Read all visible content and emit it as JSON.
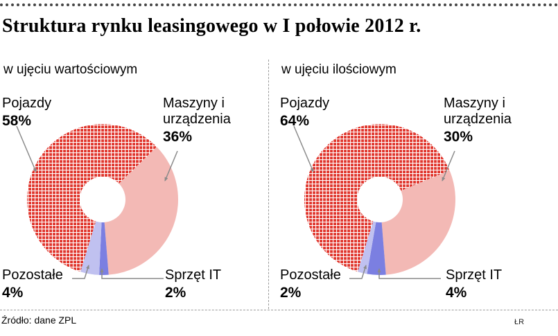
{
  "page": {
    "title": "Struktura rynku leasingowego w I połowie 2012 r.",
    "source": "Źródło: dane ZPL",
    "credit": "ŁR"
  },
  "chart_data": [
    {
      "type": "pie",
      "variant": "donut",
      "panel_title": "w ujęciu wartościowym",
      "unit": "%",
      "start_angle_deg": 197,
      "clockwise": true,
      "donut_hole_ratio": 0.3,
      "slices": [
        {
          "label": "Pojazdy",
          "value": 58,
          "pct_label": "58%",
          "color": "#e0362d",
          "fill_style": "crosshatch"
        },
        {
          "label": "Maszyny i urządzenia",
          "value": 36,
          "pct_label": "36%",
          "color": "#f3b9b5",
          "fill_style": "solid"
        },
        {
          "label": "Sprzęt IT",
          "value": 2,
          "pct_label": "2%",
          "color": "#7b7fe1",
          "fill_style": "solid"
        },
        {
          "label": "Pozostałe",
          "value": 4,
          "pct_label": "4%",
          "color": "#c0c1f0",
          "fill_style": "solid"
        }
      ]
    },
    {
      "type": "pie",
      "variant": "donut",
      "panel_title": "w ujęciu ilościowym",
      "unit": "%",
      "start_angle_deg": 197,
      "clockwise": true,
      "donut_hole_ratio": 0.3,
      "slices": [
        {
          "label": "Pojazdy",
          "value": 64,
          "pct_label": "64%",
          "color": "#e0362d",
          "fill_style": "crosshatch"
        },
        {
          "label": "Maszyny i urządzenia",
          "value": 30,
          "pct_label": "30%",
          "color": "#f3b9b5",
          "fill_style": "solid"
        },
        {
          "label": "Sprzęt IT",
          "value": 4,
          "pct_label": "4%",
          "color": "#7b7fe1",
          "fill_style": "solid"
        },
        {
          "label": "Pozostałe",
          "value": 2,
          "pct_label": "2%",
          "color": "#c0c1f0",
          "fill_style": "solid"
        }
      ]
    }
  ]
}
